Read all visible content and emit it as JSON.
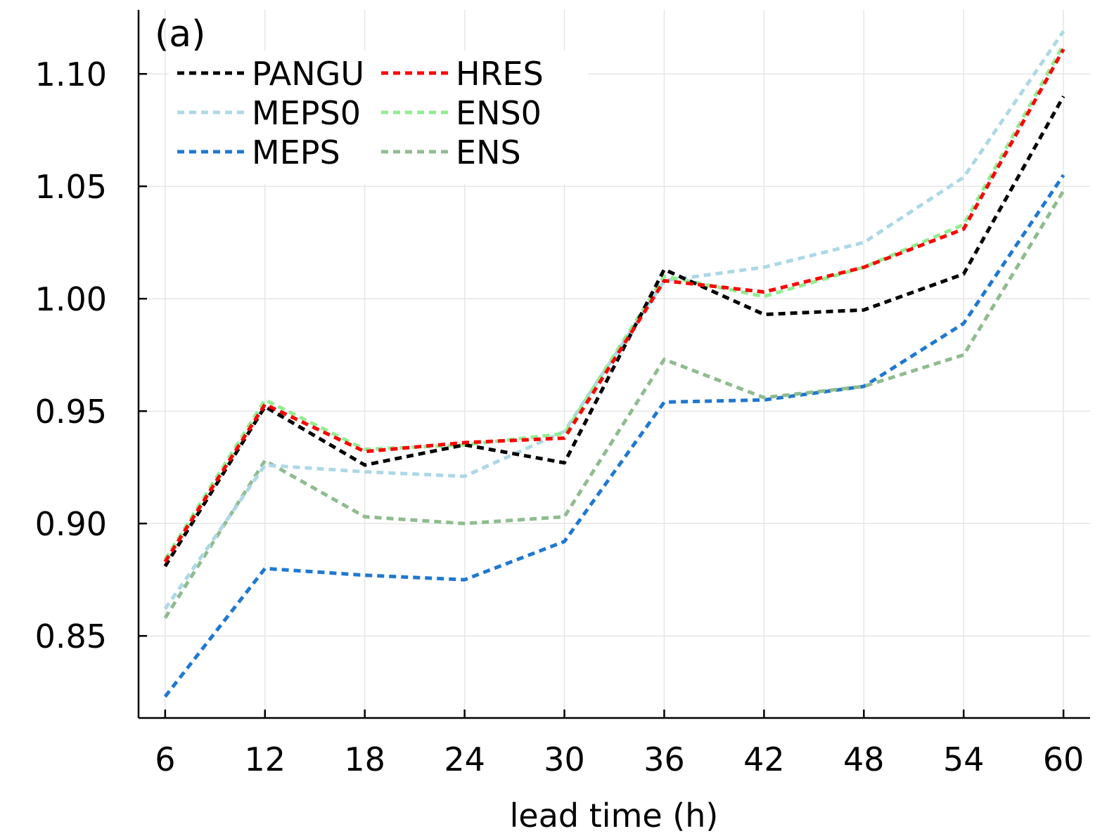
{
  "chart_data": {
    "type": "line",
    "panel_label": "(a)",
    "xlabel": "lead time (h)",
    "ylabel": "",
    "x": [
      6,
      12,
      18,
      24,
      30,
      36,
      42,
      48,
      54,
      60
    ],
    "x_ticks": [
      "6",
      "12",
      "18",
      "24",
      "30",
      "36",
      "42",
      "48",
      "54",
      "60"
    ],
    "y_ticks": [
      "0.85",
      "0.90",
      "0.95",
      "1.00",
      "1.05",
      "1.10"
    ],
    "y_tick_values": [
      0.85,
      0.9,
      0.95,
      1.0,
      1.05,
      1.1
    ],
    "xlim": [
      4.4,
      61.6
    ],
    "ylim": [
      0.8135,
      1.1285
    ],
    "grid": true,
    "legend_position": "top-left",
    "legend_columns": 2,
    "series": [
      {
        "name": "PANGU",
        "color": "#000000",
        "values": [
          0.881,
          0.952,
          0.926,
          0.935,
          0.927,
          1.013,
          0.993,
          0.995,
          1.011,
          1.09
        ]
      },
      {
        "name": "HRES",
        "color": "#ff0000",
        "values": [
          0.883,
          0.953,
          0.932,
          0.936,
          0.938,
          1.008,
          1.003,
          1.014,
          1.031,
          1.111
        ]
      },
      {
        "name": "MEPS0",
        "color": "#add8e6",
        "values": [
          0.862,
          0.926,
          0.923,
          0.921,
          0.941,
          1.008,
          1.014,
          1.025,
          1.054,
          1.119
        ]
      },
      {
        "name": "ENS0",
        "color": "#90ee90",
        "values": [
          0.884,
          0.955,
          0.933,
          0.935,
          0.94,
          1.01,
          1.001,
          1.014,
          1.033,
          1.113
        ]
      },
      {
        "name": "MEPS",
        "color": "#1f78d1",
        "values": [
          0.823,
          0.88,
          0.877,
          0.875,
          0.892,
          0.954,
          0.955,
          0.961,
          0.989,
          1.055
        ]
      },
      {
        "name": "ENS",
        "color": "#8fbc8f",
        "values": [
          0.858,
          0.928,
          0.903,
          0.9,
          0.903,
          0.973,
          0.956,
          0.961,
          0.975,
          1.048
        ]
      }
    ]
  }
}
